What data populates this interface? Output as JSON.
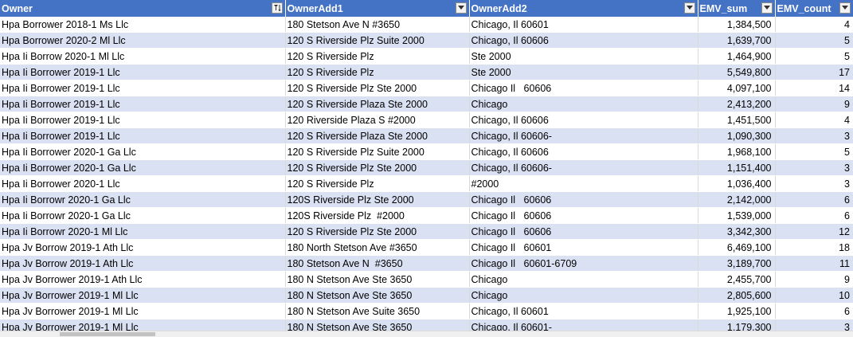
{
  "columns": [
    {
      "label": "Owner",
      "filter_icon": "sort-filter-icon"
    },
    {
      "label": "OwnerAdd1",
      "filter_icon": "filter-dropdown-icon"
    },
    {
      "label": "OwnerAdd2",
      "filter_icon": "filter-dropdown-icon"
    },
    {
      "label": "EMV_sum",
      "filter_icon": "filter-dropdown-icon"
    },
    {
      "label": "EMV_count",
      "filter_icon": "filter-dropdown-icon"
    }
  ],
  "rows": [
    [
      "Hpa Borrower 2018-1 Ms Llc",
      "180 Stetson Ave N #3650",
      "Chicago, Il 60601",
      "1,384,500",
      "4"
    ],
    [
      "Hpa Borrower 2020-2 Ml Llc",
      "120 S Riverside Plz Suite 2000",
      "Chicago, Il 60606",
      "1,639,700",
      "5"
    ],
    [
      "Hpa Ii Borrow 2020-1 Ml Llc",
      "120 S Riverside Plz",
      "Ste 2000",
      "1,464,900",
      "5"
    ],
    [
      "Hpa Ii Borrower 2019-1 Llc",
      "120 S Riverside Plz",
      "Ste 2000",
      "5,549,800",
      "17"
    ],
    [
      "Hpa Ii Borrower 2019-1 Llc",
      "120 S Riverside Plz Ste 2000",
      "Chicago Il   60606",
      "4,097,100",
      "14"
    ],
    [
      "Hpa Ii Borrower 2019-1 Llc",
      "120 S Riverside Plaza Ste 2000",
      "Chicago",
      "2,413,200",
      "9"
    ],
    [
      "Hpa Ii Borrower 2019-1 Llc",
      "120 Riverside Plaza S #2000",
      "Chicago, Il 60606",
      "1,451,500",
      "4"
    ],
    [
      "Hpa Ii Borrower 2019-1 Llc",
      "120 S Riverside Plaza Ste 2000",
      "Chicago, Il 60606-",
      "1,090,300",
      "3"
    ],
    [
      "Hpa Ii Borrower 2020-1 Ga Llc",
      "120 S Riverside Plz Suite 2000",
      "Chicago, Il 60606",
      "1,968,100",
      "5"
    ],
    [
      "Hpa Ii Borrower 2020-1 Ga Llc",
      "120 S Riverside Plz Ste 2000",
      "Chicago, Il 60606-",
      "1,151,400",
      "3"
    ],
    [
      "Hpa Ii Borrower 2020-1 Llc",
      "120 S Riverside Plz",
      "#2000",
      "1,036,400",
      "3"
    ],
    [
      "Hpa Ii Borrowr 2020-1 Ga Llc",
      "120S Riverside Plz Ste 2000",
      "Chicago Il   60606",
      "2,142,000",
      "6"
    ],
    [
      "Hpa Ii Borrowr 2020-1 Ga Llc",
      "120S Riverside Plz  #2000",
      "Chicago Il   60606",
      "1,539,000",
      "6"
    ],
    [
      "Hpa Ii Borrowr 2020-1 Ml Llc",
      "120 S Riverside Plz Ste 2000",
      "Chicago Il   60606",
      "3,342,300",
      "12"
    ],
    [
      "Hpa Jv Borrow 2019-1 Ath Llc",
      "180 North Stetson Ave #3650",
      "Chicago Il   60601",
      "6,469,100",
      "18"
    ],
    [
      "Hpa Jv Borrow 2019-1 Ath Llc",
      "180 Stetson Ave N  #3650",
      "Chicago Il   60601-6709",
      "3,189,700",
      "11"
    ],
    [
      "Hpa Jv Borrower 2019-1 Ath Llc",
      "180 N Stetson Ave Ste 3650",
      "Chicago",
      "2,455,700",
      "9"
    ],
    [
      "Hpa Jv Borrower 2019-1 Ml Llc",
      "180 N Stetson Ave Ste 3650",
      "Chicago",
      "2,805,600",
      "10"
    ],
    [
      "Hpa Jv Borrower 2019-1 Ml Llc",
      "180 N Stetson Ave Suite 3650",
      "Chicago, Il 60601",
      "1,925,100",
      "6"
    ],
    [
      "Hpa Jv Borrower 2019-1 Ml Llc",
      "180 N Stetson Ave Ste 3650",
      "Chicago, Il 60601-",
      "1,179,300",
      "3"
    ]
  ],
  "colors": {
    "header_bg": "#4472c4",
    "header_text": "#ffffff",
    "band_row": "#d9e1f2",
    "plain_row": "#ffffff"
  }
}
